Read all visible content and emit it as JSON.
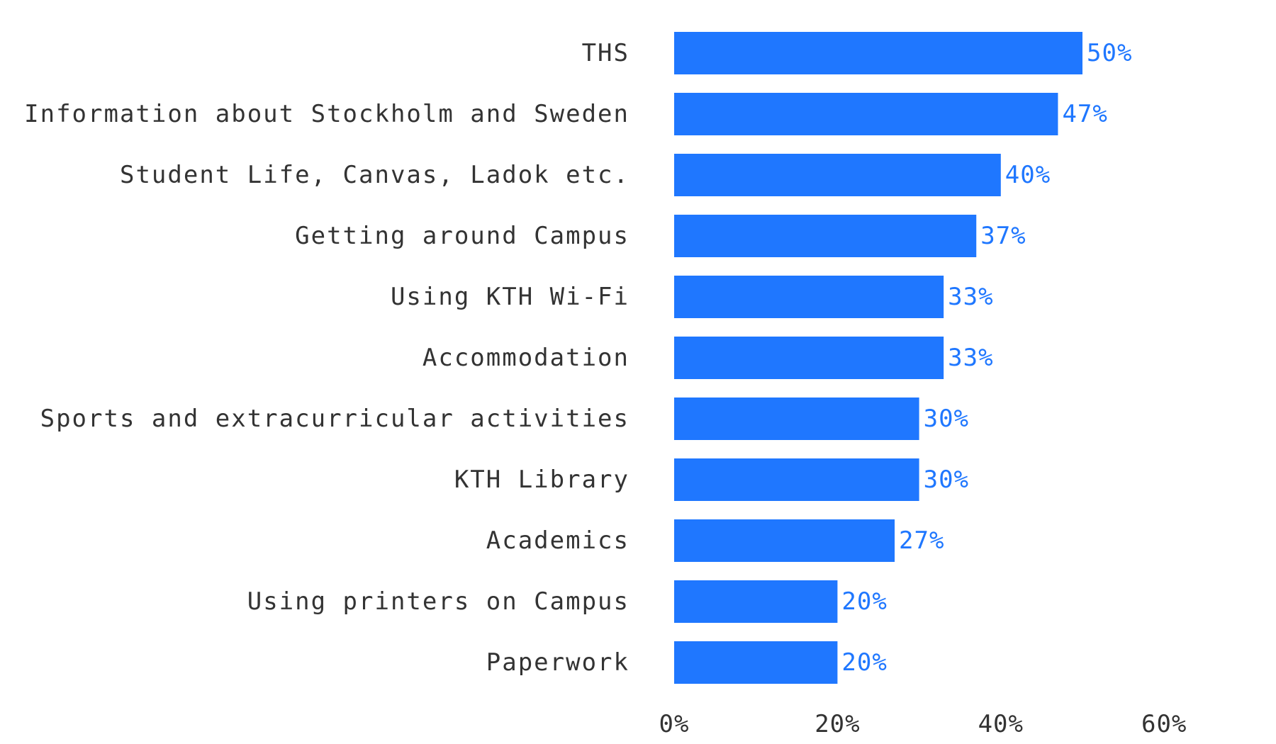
{
  "colors": {
    "bar": "#1f77ff",
    "value_label": "#1f77ff",
    "text": "#333333"
  },
  "chart_data": {
    "type": "bar",
    "orientation": "horizontal",
    "categories": [
      "THS",
      "Information about Stockholm and Sweden",
      "Student Life, Canvas, Ladok etc.",
      "Getting around Campus",
      "Using KTH Wi-Fi",
      "Accommodation",
      "Sports and extracurricular activities",
      "KTH Library",
      "Academics",
      "Using printers on Campus",
      "Paperwork"
    ],
    "values": [
      50,
      47,
      40,
      37,
      33,
      33,
      30,
      30,
      27,
      20,
      20
    ],
    "value_labels": [
      "50%",
      "47%",
      "40%",
      "37%",
      "33%",
      "33%",
      "30%",
      "30%",
      "27%",
      "20%",
      "20%"
    ],
    "x_ticks": [
      0,
      20,
      40,
      60
    ],
    "x_tick_labels": [
      "0%",
      "20%",
      "40%",
      "60%"
    ],
    "xlim": [
      0,
      60
    ],
    "title": "",
    "xlabel": "",
    "ylabel": "",
    "grid": false,
    "legend": "none"
  }
}
